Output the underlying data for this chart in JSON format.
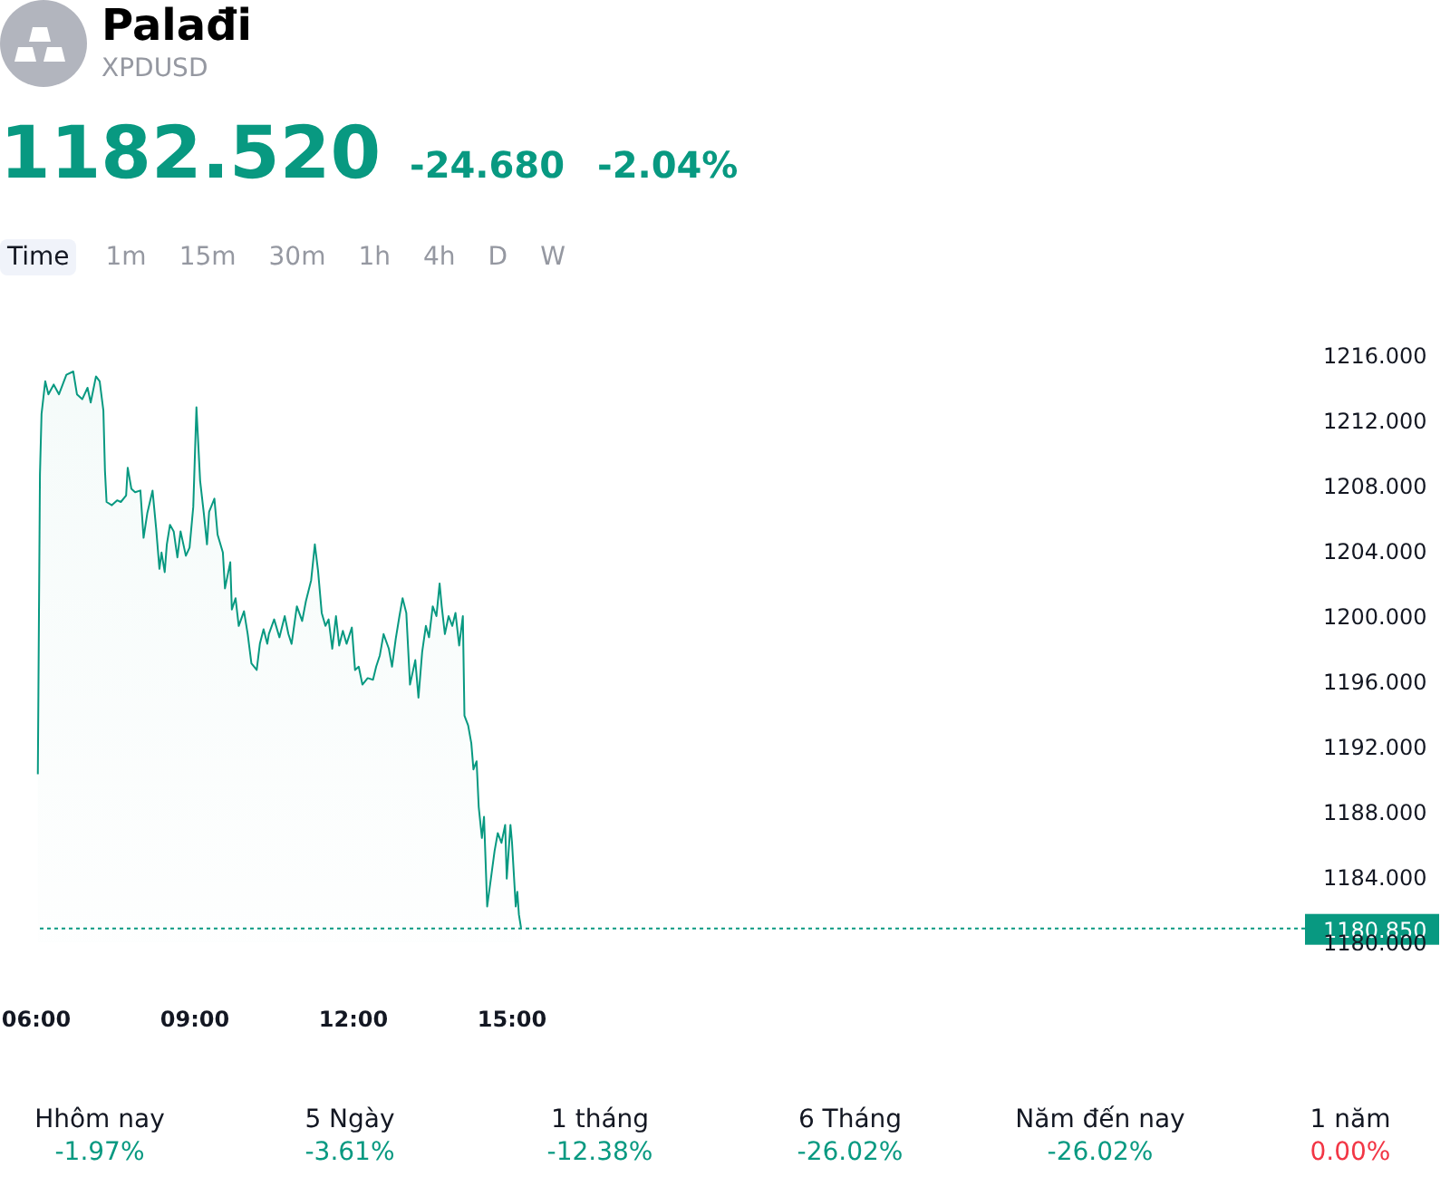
{
  "chart_data": {
    "type": "area",
    "title": "Palađi",
    "subtitle": "XPDUSD",
    "annotations": [
      "1182.520",
      "-24.680",
      "-2.04%",
      "Time",
      "1m",
      "15m",
      "30m",
      "1h",
      "4h",
      "D",
      "W",
      "Hhôm nay",
      "-1.97%",
      "5 Ngày",
      "-3.61%",
      "1 tháng",
      "-12.38%",
      "6 Tháng",
      "-26.02%",
      "Năm đến nay",
      "-26.02%",
      "1 năm",
      "0.00%"
    ],
    "x": [
      6.03,
      6.07,
      6.1,
      6.17,
      6.23,
      6.33,
      6.43,
      6.57,
      6.7,
      6.77,
      6.87,
      6.97,
      7.03,
      7.13,
      7.2,
      7.27,
      7.3,
      7.33,
      7.43,
      7.53,
      7.6,
      7.7,
      7.73,
      7.8,
      7.87,
      7.97,
      8.03,
      8.1,
      8.2,
      8.27,
      8.33,
      8.37,
      8.43,
      8.47,
      8.53,
      8.6,
      8.67,
      8.73,
      8.83,
      8.9,
      8.97,
      9.03,
      9.1,
      9.17,
      9.23,
      9.27,
      9.37,
      9.43,
      9.53,
      9.57,
      9.67,
      9.7,
      9.77,
      9.83,
      9.93,
      10.0,
      10.07,
      10.17,
      10.23,
      10.3,
      10.37,
      10.4,
      10.5,
      10.6,
      10.7,
      10.77,
      10.83,
      10.93,
      11.03,
      11.1,
      11.2,
      11.27,
      11.33,
      11.4,
      11.47,
      11.53,
      11.6,
      11.67,
      11.73,
      11.8,
      11.87,
      11.97,
      12.03,
      12.1,
      12.17,
      12.27,
      12.37,
      12.43,
      12.5,
      12.57,
      12.67,
      12.73,
      12.8,
      12.87,
      12.93,
      13.0,
      13.07,
      13.17,
      13.23,
      13.3,
      13.37,
      13.43,
      13.5,
      13.57,
      13.63,
      13.67,
      13.73,
      13.8,
      13.87,
      13.93,
      14.0,
      14.07,
      14.1,
      14.17,
      14.23,
      14.27,
      14.33,
      14.37,
      14.43,
      14.47,
      14.53,
      14.6,
      14.67,
      14.73,
      14.8,
      14.87,
      14.9,
      14.97,
      15.0,
      15.07,
      15.1,
      15.13,
      15.17
    ],
    "series": [
      {
        "color": "#089981",
        "values": [
          1190.3,
          1208.7,
          1212.4,
          1214.4,
          1213.6,
          1214.2,
          1213.6,
          1214.8,
          1215.0,
          1213.6,
          1213.3,
          1214.0,
          1213.1,
          1214.7,
          1214.4,
          1212.6,
          1208.9,
          1207.0,
          1206.8,
          1207.1,
          1207.0,
          1207.4,
          1209.1,
          1207.8,
          1207.6,
          1207.7,
          1204.8,
          1206.3,
          1207.7,
          1205.3,
          1202.9,
          1203.9,
          1202.7,
          1204.4,
          1205.6,
          1205.2,
          1203.6,
          1205.2,
          1203.7,
          1204.2,
          1206.7,
          1212.8,
          1208.3,
          1206.3,
          1204.4,
          1206.4,
          1207.2,
          1205.0,
          1203.9,
          1201.7,
          1203.3,
          1200.4,
          1201.1,
          1199.4,
          1200.3,
          1198.9,
          1197.1,
          1196.7,
          1198.3,
          1199.2,
          1198.3,
          1198.9,
          1199.8,
          1198.7,
          1200.0,
          1198.9,
          1198.3,
          1200.6,
          1199.7,
          1200.9,
          1202.2,
          1204.4,
          1202.8,
          1200.2,
          1199.4,
          1199.8,
          1198.0,
          1200.0,
          1198.2,
          1199.1,
          1198.3,
          1199.3,
          1196.7,
          1196.9,
          1195.8,
          1196.2,
          1196.1,
          1196.9,
          1197.6,
          1198.9,
          1198.0,
          1196.9,
          1198.6,
          1200.0,
          1201.1,
          1200.2,
          1195.8,
          1197.3,
          1195.0,
          1197.8,
          1199.4,
          1198.7,
          1200.6,
          1200.0,
          1202.0,
          1200.6,
          1198.9,
          1200.0,
          1199.4,
          1200.2,
          1198.2,
          1200.0,
          1193.9,
          1193.3,
          1192.2,
          1190.6,
          1191.1,
          1188.3,
          1186.4,
          1187.7,
          1182.2,
          1183.9,
          1185.6,
          1186.7,
          1186.1,
          1187.2,
          1183.9,
          1187.2,
          1186.1,
          1182.2,
          1183.1,
          1181.7,
          1180.9
        ]
      }
    ],
    "xlim": [
      6,
      30
    ],
    "xticks": [
      {
        "value": 6,
        "label": "06:00"
      },
      {
        "value": 9,
        "label": "09:00"
      },
      {
        "value": 12,
        "label": "12:00"
      },
      {
        "value": 15,
        "label": "15:00"
      }
    ],
    "ylim": [
      1180,
      1216
    ],
    "yticks": [
      {
        "value": 1180,
        "label": "1180.000"
      },
      {
        "value": 1184,
        "label": "1184.000"
      },
      {
        "value": 1188,
        "label": "1188.000"
      },
      {
        "value": 1192,
        "label": "1192.000"
      },
      {
        "value": 1196,
        "label": "1196.000"
      },
      {
        "value": 1200,
        "label": "1200.000"
      },
      {
        "value": 1204,
        "label": "1204.000"
      },
      {
        "value": 1208,
        "label": "1208.000"
      },
      {
        "value": 1212,
        "label": "1212.000"
      },
      {
        "value": 1216,
        "label": "1216.000"
      }
    ],
    "ref_lines": [
      {
        "axis": "y",
        "value": 1180.85,
        "label": "1180.850",
        "color": "#089981",
        "line_style": "dotted"
      }
    ],
    "marker": "none",
    "line_style": "solid"
  }
}
